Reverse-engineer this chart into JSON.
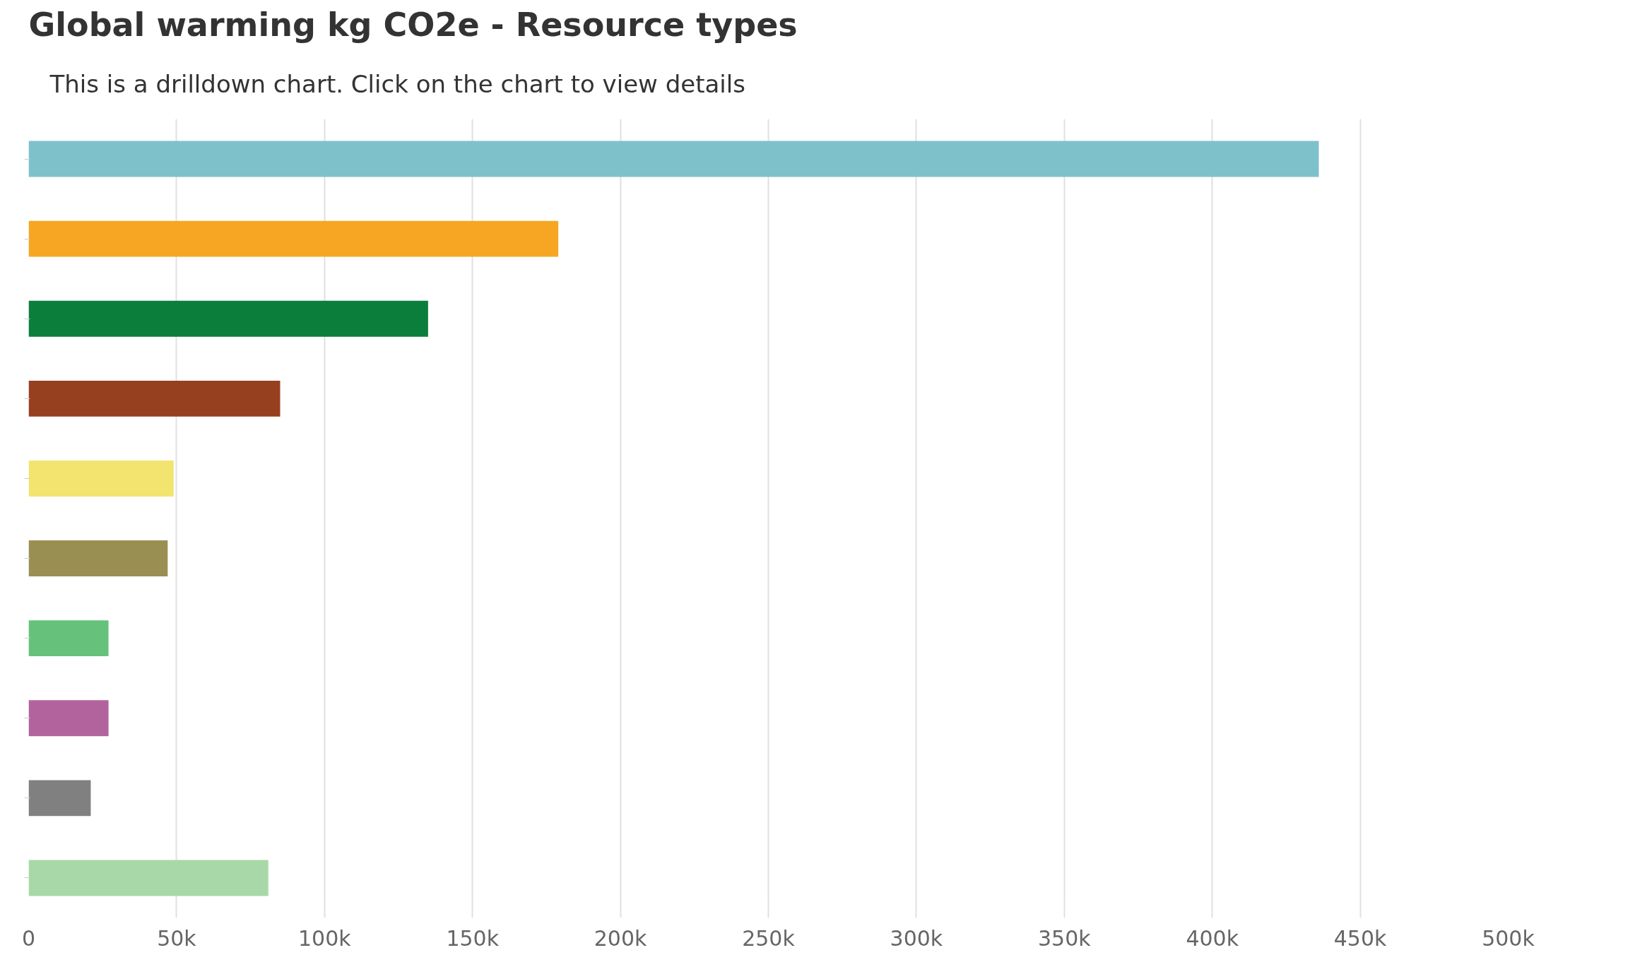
{
  "chart_data": {
    "type": "bar",
    "orientation": "horizontal",
    "title": "Global warming kg CO2e - Resource types",
    "subtitle": "This is a drilldown chart. Click on the chart to view details",
    "categories": [
      null,
      null,
      null,
      null,
      null,
      null,
      null,
      null,
      null,
      null
    ],
    "values": [
      436000,
      179000,
      135000,
      85000,
      49000,
      47000,
      27000,
      27000,
      21000,
      81000
    ],
    "colors": [
      "#7fc1ca",
      "#f6a623",
      "#0c7e3c",
      "#97401f",
      "#f2e46f",
      "#9a8f52",
      "#66c27a",
      "#b2639e",
      "#808080",
      "#a8d8a8"
    ],
    "xlim": [
      0,
      500000
    ],
    "xticks": [
      0,
      {
        "value": 50000,
        "label": "50k"
      },
      {
        "value": 100000,
        "label": "100k"
      },
      {
        "value": 150000,
        "label": "150k"
      },
      {
        "value": 200000,
        "label": "200k"
      },
      {
        "value": 250000,
        "label": "250k"
      },
      {
        "value": 300000,
        "label": "300k"
      },
      {
        "value": 350000,
        "label": "350k"
      },
      {
        "value": 400000,
        "label": "400k"
      },
      {
        "value": 450000,
        "label": "450k"
      },
      {
        "value": 500000,
        "label": "500k"
      }
    ],
    "grid": "x",
    "tick_labels": "x"
  }
}
